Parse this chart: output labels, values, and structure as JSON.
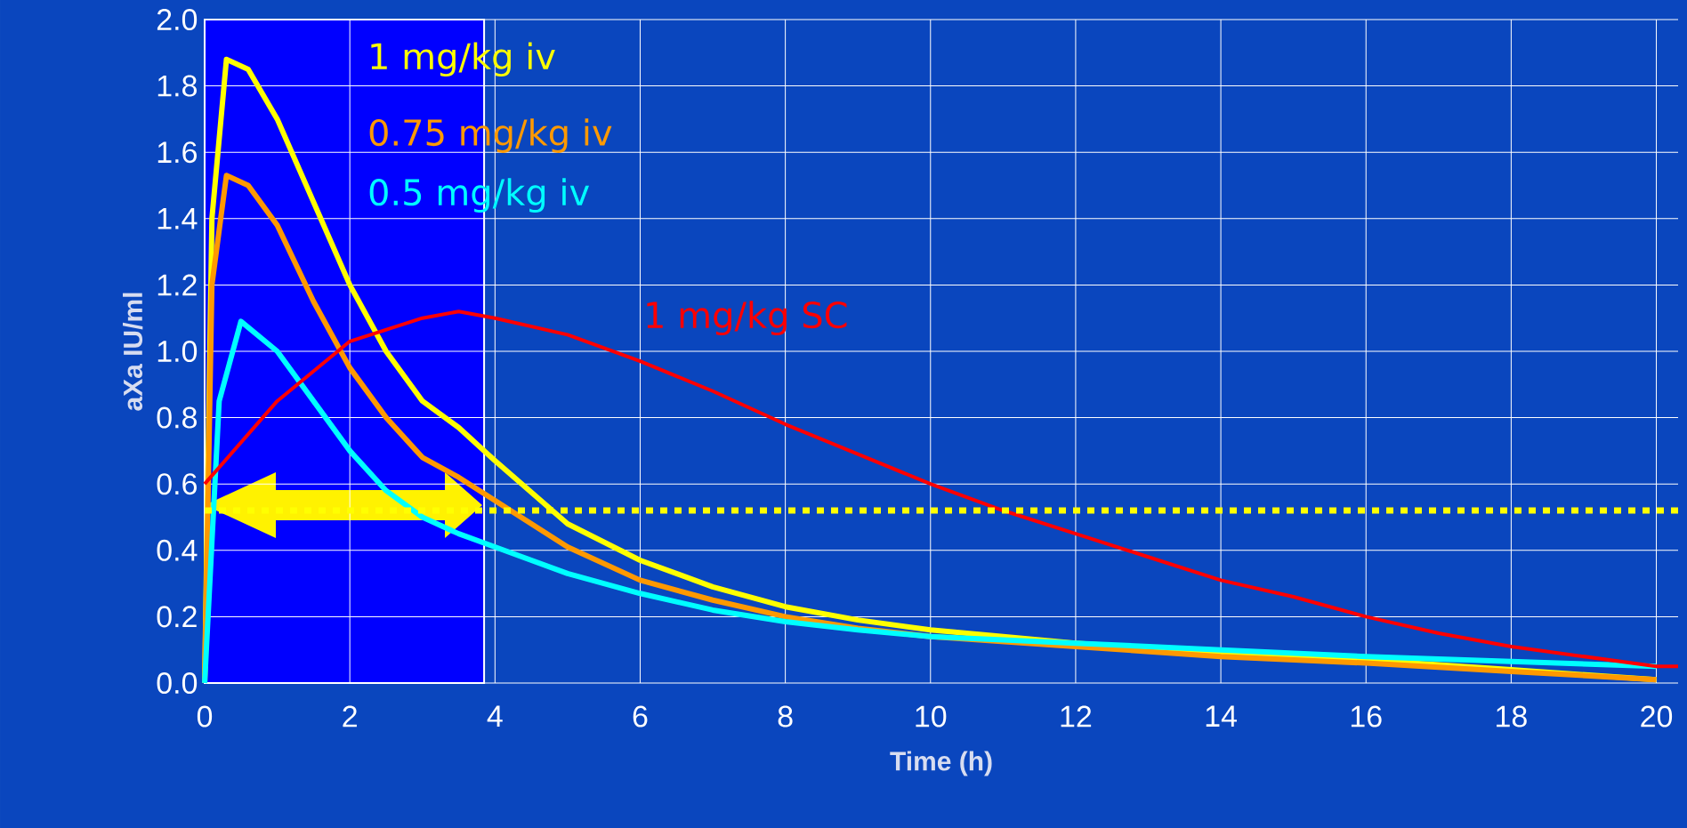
{
  "chart_data": {
    "type": "line",
    "xlabel": "Time (h)",
    "ylabel": "aXa IU/ml",
    "series": [
      {
        "name": "1 mg/kg iv",
        "color": "#ffff00",
        "x": [
          0,
          0.1,
          0.3,
          0.6,
          1,
          1.5,
          2,
          2.5,
          3,
          3.5,
          4,
          5,
          6,
          7,
          8,
          9,
          10,
          12,
          14,
          16,
          18,
          20
        ],
        "values": [
          0,
          1.4,
          1.88,
          1.85,
          1.7,
          1.45,
          1.2,
          1.0,
          0.85,
          0.77,
          0.67,
          0.48,
          0.37,
          0.29,
          0.23,
          0.19,
          0.16,
          0.12,
          0.09,
          0.07,
          0.04,
          0.01
        ]
      },
      {
        "name": "0.75 mg/kg iv",
        "color": "#ff9900",
        "x": [
          0,
          0.1,
          0.3,
          0.6,
          1,
          1.5,
          2,
          2.5,
          3,
          3.5,
          4,
          5,
          6,
          7,
          8,
          9,
          10,
          12,
          14,
          16,
          18,
          20
        ],
        "values": [
          0,
          1.2,
          1.53,
          1.5,
          1.38,
          1.15,
          0.95,
          0.8,
          0.68,
          0.62,
          0.55,
          0.41,
          0.31,
          0.25,
          0.2,
          0.165,
          0.14,
          0.11,
          0.08,
          0.06,
          0.035,
          0.01
        ]
      },
      {
        "name": "0.5 mg/kg iv",
        "color": "#00ffff",
        "x": [
          0,
          0.2,
          0.5,
          1,
          1.5,
          2,
          2.5,
          3,
          3.5,
          4,
          5,
          6,
          7,
          8,
          9,
          10,
          12,
          14,
          16,
          18,
          20
        ],
        "values": [
          0,
          0.85,
          1.09,
          1.0,
          0.85,
          0.7,
          0.58,
          0.5,
          0.45,
          0.41,
          0.33,
          0.27,
          0.22,
          0.185,
          0.16,
          0.14,
          0.12,
          0.1,
          0.08,
          0.065,
          0.05
        ]
      },
      {
        "name": "1 mg/kg SC",
        "color": "#ff0000",
        "x": [
          0,
          1,
          2,
          3,
          3.5,
          4,
          5,
          6,
          7,
          8,
          9,
          10,
          11,
          12,
          13,
          14,
          15,
          16,
          17,
          18,
          19,
          20,
          20.3
        ],
        "values": [
          0.6,
          0.85,
          1.03,
          1.1,
          1.12,
          1.1,
          1.05,
          0.97,
          0.88,
          0.78,
          0.69,
          0.6,
          0.52,
          0.45,
          0.38,
          0.31,
          0.26,
          0.2,
          0.15,
          0.11,
          0.08,
          0.05,
          0.05
        ]
      }
    ],
    "xlim": [
      0,
      20.3
    ],
    "ylim": [
      0,
      2.0
    ],
    "xticks": [
      0,
      2,
      4,
      6,
      8,
      10,
      12,
      14,
      16,
      18,
      20
    ],
    "yticks": [
      {
        "value": 0,
        "label": "0.0"
      },
      {
        "value": 0.2,
        "label": "0.2"
      },
      {
        "value": 0.4,
        "label": "0.4"
      },
      {
        "value": 0.6,
        "label": "0.6"
      },
      {
        "value": 0.8,
        "label": "0.8"
      },
      {
        "value": 1.0,
        "label": "1.0"
      },
      {
        "value": 1.2,
        "label": "1.2"
      },
      {
        "value": 1.4,
        "label": "1.4"
      },
      {
        "value": 1.6,
        "label": "1.6"
      },
      {
        "value": 1.8,
        "label": "1.8"
      },
      {
        "value": 2.0,
        "label": "2.0"
      }
    ],
    "grid": true,
    "bands": [
      {
        "axis": "x",
        "from": 0,
        "to": 3.85,
        "color": "#0000ff"
      }
    ],
    "ref_lines": [
      {
        "axis": "y",
        "value": 0.52,
        "color": "#ffff00",
        "line_style": "dotted"
      }
    ]
  }
}
